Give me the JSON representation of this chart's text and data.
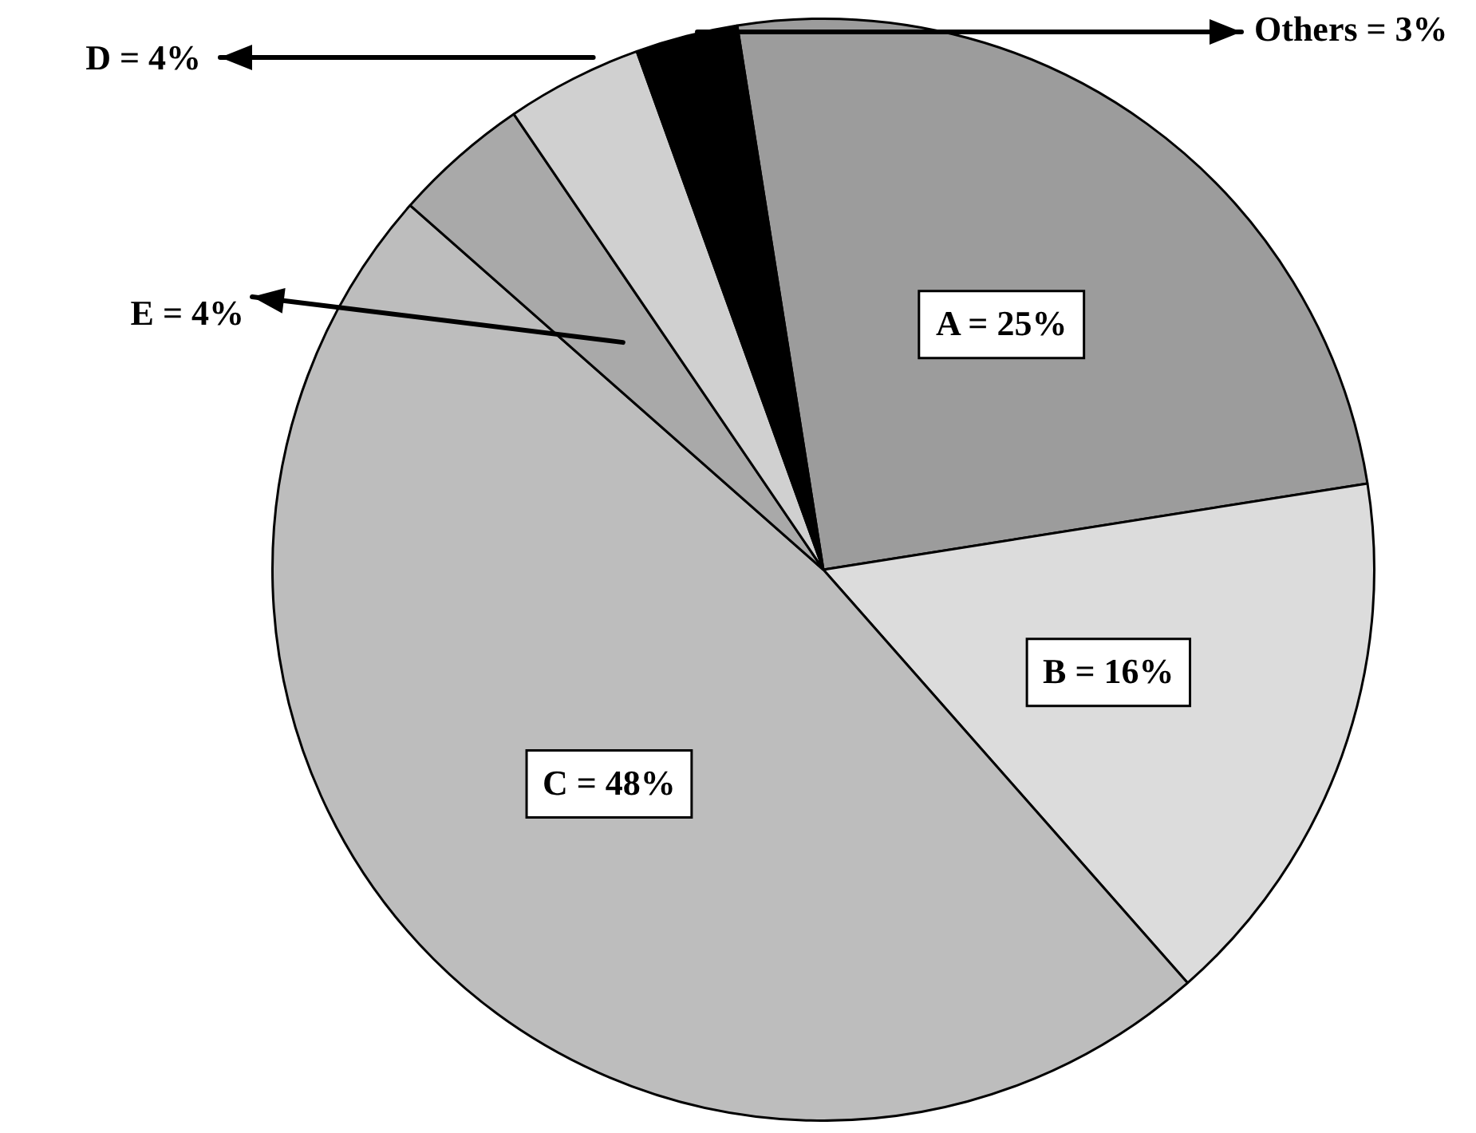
{
  "chart_data": {
    "type": "pie",
    "categories": [
      "A",
      "B",
      "C",
      "E",
      "D",
      "Others"
    ],
    "values": [
      25,
      16,
      48,
      4,
      4,
      3
    ],
    "colors": [
      "#9c9c9c",
      "#dcdcdc",
      "#bdbdbd",
      "#a9a9a9",
      "#d0d0d0",
      "#000000"
    ],
    "value_labels": [
      "= 25%",
      "= 16%",
      "= 48%",
      "= 4%",
      "= 4%",
      "= 3%"
    ]
  }
}
